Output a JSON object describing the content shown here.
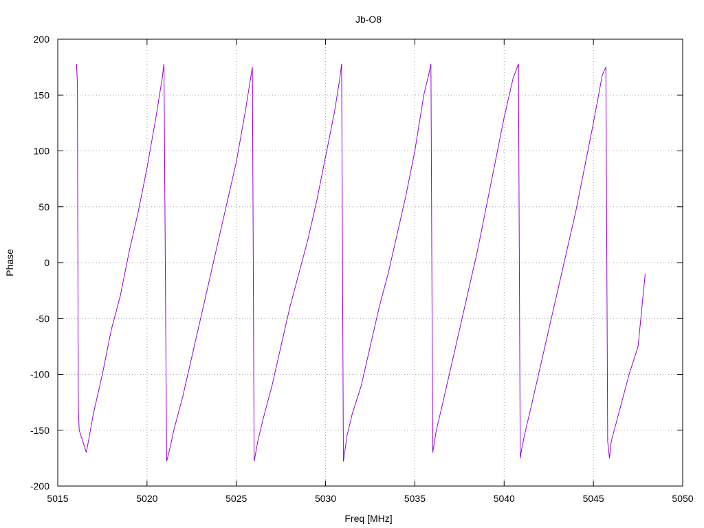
{
  "chart_data": {
    "type": "line",
    "title": "Jb-O8",
    "xlabel": "Freq [MHz]",
    "ylabel": "Phase",
    "xlim": [
      5015,
      5050
    ],
    "ylim": [
      -200,
      200
    ],
    "xticks": [
      5015,
      5020,
      5025,
      5030,
      5035,
      5040,
      5045,
      5050
    ],
    "yticks": [
      -200,
      -150,
      -100,
      -50,
      0,
      50,
      100,
      150,
      200
    ],
    "grid": true,
    "legend": "none",
    "line_color": "#9400d3",
    "series": [
      {
        "x": [
          5016.05,
          5016.1,
          5016.15,
          5016.2,
          5016.6,
          5017.0,
          5017.5,
          5018.0,
          5018.5,
          5019.0,
          5019.5,
          5020.0,
          5020.5,
          5020.85,
          5020.95,
          5021.1,
          5021.3,
          5021.5,
          5022.0,
          5022.5,
          5023.0,
          5023.5,
          5024.0,
          5024.5,
          5025.0,
          5025.5,
          5025.8,
          5025.9,
          5026.0,
          5026.2,
          5026.5,
          5027.0,
          5027.5,
          5028.0,
          5028.5,
          5029.0,
          5029.5,
          5030.0,
          5030.5,
          5030.8,
          5030.9,
          5031.0,
          5031.2,
          5031.5,
          5032.0,
          5032.5,
          5033.0,
          5033.5,
          5034.0,
          5034.5,
          5035.0,
          5035.5,
          5035.8,
          5035.9,
          5036.0,
          5036.2,
          5036.5,
          5037.0,
          5037.5,
          5038.0,
          5038.5,
          5039.0,
          5039.5,
          5040.0,
          5040.5,
          5040.8,
          5040.9,
          5041.0,
          5041.2,
          5041.5,
          5042.0,
          5042.5,
          5043.0,
          5043.5,
          5044.0,
          5044.5,
          5045.0,
          5045.5,
          5045.7,
          5045.8,
          5045.9,
          5046.0,
          5046.5,
          5047.0,
          5047.5,
          5047.9
        ],
        "y": [
          178,
          160,
          -130,
          -150,
          -170,
          -135,
          -100,
          -60,
          -30,
          10,
          45,
          85,
          130,
          165,
          178,
          -178,
          -165,
          -150,
          -120,
          -85,
          -50,
          -15,
          20,
          55,
          90,
          135,
          165,
          175,
          -178,
          -160,
          -140,
          -110,
          -75,
          -40,
          -10,
          20,
          55,
          95,
          135,
          165,
          178,
          -178,
          -155,
          -135,
          -110,
          -75,
          -40,
          -10,
          25,
          60,
          100,
          150,
          170,
          178,
          -170,
          -150,
          -130,
          -95,
          -60,
          -25,
          10,
          50,
          90,
          130,
          165,
          178,
          -175,
          -165,
          -150,
          -130,
          -95,
          -60,
          -25,
          10,
          45,
          85,
          125,
          168,
          175,
          -160,
          -175,
          -160,
          -130,
          -100,
          -75,
          -10
        ]
      }
    ]
  }
}
